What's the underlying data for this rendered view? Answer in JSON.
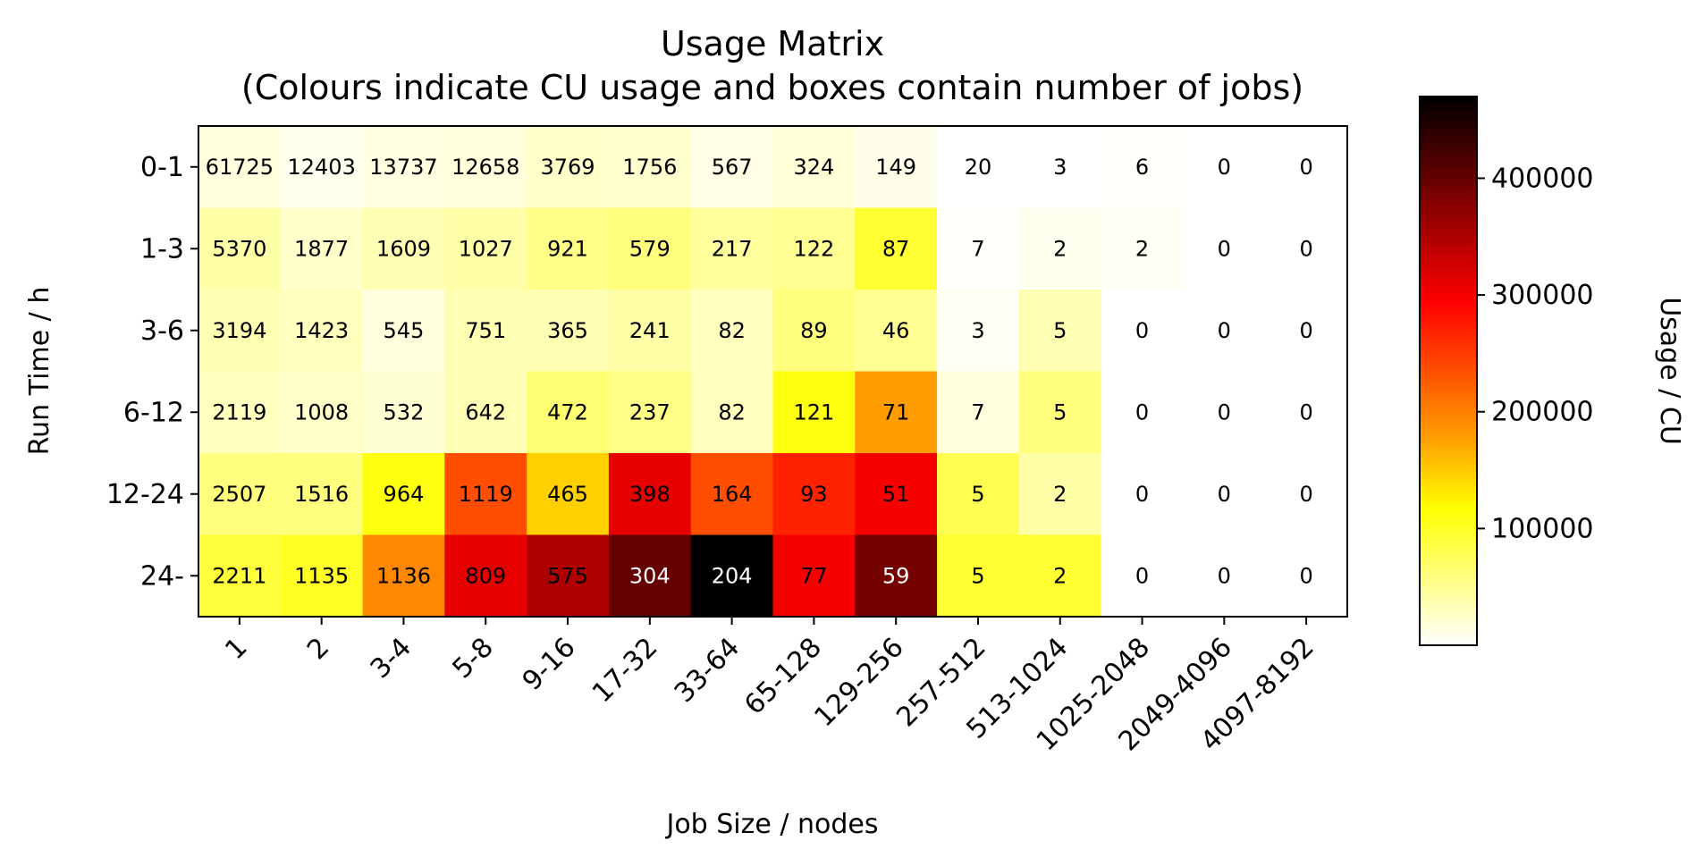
{
  "chart_data": {
    "type": "heatmap",
    "title": "Usage Matrix",
    "subtitle": "(Colours indicate CU usage and boxes contain number of jobs)",
    "xlabel": "Job Size / nodes",
    "ylabel": "Run Time / h",
    "colorbar_label": "Usage / CU",
    "colormap": "hot_r",
    "x_categories": [
      "1",
      "2",
      "3-4",
      "5-8",
      "9-16",
      "17-32",
      "33-64",
      "65-128",
      "129-256",
      "257-512",
      "513-1024",
      "1025-2048",
      "2049-4096",
      "4097-8192"
    ],
    "y_categories": [
      "0-1",
      "1-3",
      "3-6",
      "6-12",
      "12-24",
      "24-"
    ],
    "job_counts": [
      [
        61725,
        12403,
        13737,
        12658,
        3769,
        1756,
        567,
        324,
        149,
        20,
        3,
        6,
        0,
        0
      ],
      [
        5370,
        1877,
        1609,
        1027,
        921,
        579,
        217,
        122,
        87,
        7,
        2,
        2,
        0,
        0
      ],
      [
        3194,
        1423,
        545,
        751,
        365,
        241,
        82,
        89,
        46,
        3,
        5,
        0,
        0,
        0
      ],
      [
        2119,
        1008,
        532,
        642,
        472,
        237,
        82,
        121,
        71,
        7,
        5,
        0,
        0,
        0
      ],
      [
        2507,
        1516,
        964,
        1119,
        465,
        398,
        164,
        93,
        51,
        5,
        2,
        0,
        0,
        0
      ],
      [
        2211,
        1135,
        1136,
        809,
        575,
        304,
        204,
        77,
        59,
        5,
        2,
        0,
        0,
        0
      ]
    ],
    "usage": [
      [
        15000,
        8000,
        14000,
        16000,
        25000,
        22000,
        12000,
        18000,
        10000,
        0,
        1000,
        2000,
        0,
        0
      ],
      [
        40000,
        25000,
        35000,
        40000,
        55000,
        60000,
        45000,
        50000,
        95000,
        2000,
        8000,
        5000,
        0,
        0
      ],
      [
        35000,
        30000,
        15000,
        35000,
        35000,
        40000,
        30000,
        60000,
        50000,
        5000,
        35000,
        0,
        0,
        0
      ],
      [
        30000,
        25000,
        20000,
        35000,
        65000,
        55000,
        30000,
        110000,
        185000,
        15000,
        60000,
        0,
        0,
        0
      ],
      [
        60000,
        60000,
        110000,
        240000,
        150000,
        310000,
        240000,
        270000,
        300000,
        80000,
        40000,
        0,
        0,
        0
      ],
      [
        90000,
        100000,
        200000,
        310000,
        350000,
        400000,
        470000,
        300000,
        390000,
        95000,
        95000,
        0,
        0,
        0
      ]
    ],
    "color_range": [
      0,
      470000
    ],
    "colorbar_ticks": [
      100000,
      200000,
      300000,
      400000
    ],
    "colorbar_tick_labels": [
      "100000",
      "200000",
      "300000",
      "400000"
    ]
  }
}
